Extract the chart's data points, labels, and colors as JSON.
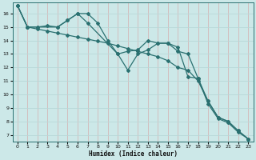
{
  "xlabel": "Humidex (Indice chaleur)",
  "background_color": "#cce8e8",
  "grid_color_h": "#b8d8d8",
  "grid_color_v": "#d4b8b8",
  "line_color": "#2a7070",
  "xlim": [
    -0.5,
    23.5
  ],
  "ylim": [
    6.5,
    16.8
  ],
  "yticks": [
    7,
    8,
    9,
    10,
    11,
    12,
    13,
    14,
    15,
    16
  ],
  "xticks": [
    0,
    1,
    2,
    3,
    4,
    5,
    6,
    7,
    8,
    9,
    10,
    11,
    12,
    13,
    14,
    15,
    16,
    17,
    18,
    19,
    20,
    21,
    22,
    23
  ],
  "line1_x": [
    0,
    1,
    2,
    4,
    5,
    6,
    7,
    10,
    11,
    12,
    13,
    14,
    15,
    16,
    17,
    18,
    19,
    20,
    21,
    22,
    23
  ],
  "line1_y": [
    16.6,
    15.0,
    15.0,
    15.0,
    15.5,
    16.0,
    15.3,
    13.0,
    11.8,
    13.0,
    13.3,
    13.8,
    13.8,
    13.2,
    13.0,
    11.2,
    9.5,
    8.3,
    8.0,
    7.3,
    6.7
  ],
  "line2_x": [
    0,
    1,
    2,
    3,
    4,
    5,
    6,
    7,
    8,
    9,
    10,
    11,
    12,
    13,
    14,
    15,
    16,
    17,
    18,
    19,
    20,
    21,
    22,
    23
  ],
  "line2_y": [
    16.6,
    15.0,
    15.0,
    15.1,
    15.0,
    15.5,
    16.0,
    16.0,
    15.3,
    14.0,
    13.0,
    13.2,
    13.3,
    14.0,
    13.8,
    13.8,
    13.5,
    11.3,
    11.2,
    9.3,
    8.2,
    7.9,
    7.2,
    6.7
  ],
  "line3_x": [
    0,
    1,
    2,
    3,
    4,
    5,
    6,
    7,
    8,
    9,
    10,
    11,
    12,
    13,
    14,
    15,
    16,
    17,
    18,
    19,
    20,
    21,
    22,
    23
  ],
  "line3_y": [
    16.6,
    15.0,
    14.85,
    14.7,
    14.55,
    14.4,
    14.25,
    14.1,
    13.95,
    13.8,
    13.6,
    13.4,
    13.2,
    13.0,
    12.8,
    12.5,
    12.0,
    11.8,
    11.0,
    9.5,
    8.3,
    8.0,
    7.3,
    6.7
  ]
}
